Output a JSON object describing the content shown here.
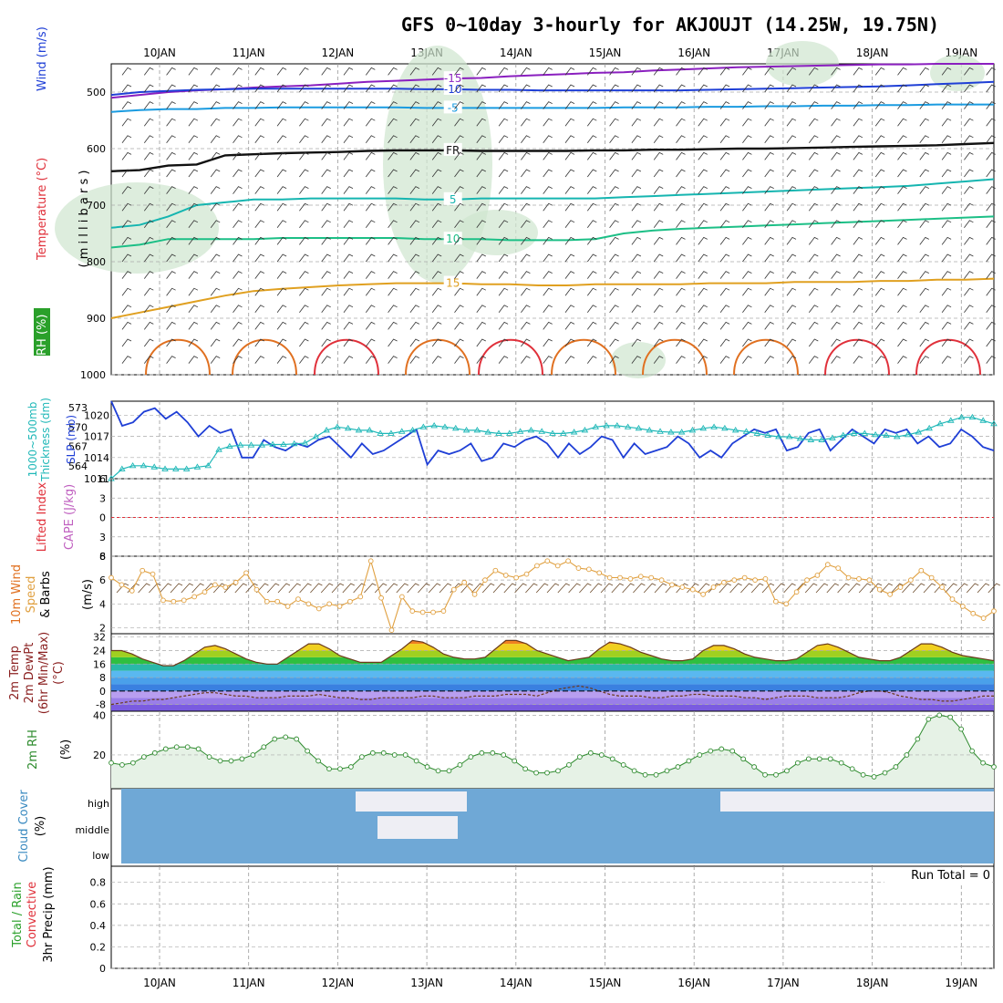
{
  "title": "GFS 0~10day 3-hourly for AKJOUJT (14.25W, 19.75N)",
  "dates": [
    "10JAN",
    "11JAN",
    "12JAN",
    "13JAN",
    "14JAN",
    "15JAN",
    "16JAN",
    "17JAN",
    "18JAN",
    "19JAN"
  ],
  "colors": {
    "temp_m15": "#8a1fbf",
    "temp_m10": "#1f3fd6",
    "temp_m5": "#1a9be0",
    "freezing": "#111111",
    "temp_5": "#15b5b0",
    "temp_10": "#1cbf86",
    "temp_15": "#e0a020",
    "temp_20": "#e07020",
    "temp_25": "#e0303a",
    "slp": "#1f3fd6",
    "thickness": "#20b8b8",
    "wind10m": "#e0a040",
    "rh": "#2e8b2e",
    "cloud": "#6fa8d6"
  },
  "chart_data": [
    {
      "type": "line",
      "panel": "upper-air",
      "ylabel_left": [
        "RH (%)",
        "Temperature (°C)",
        "Wind (m/s)"
      ],
      "ylabel_right": "( m i l l i b a r s )",
      "yticks": [
        500,
        600,
        700,
        800,
        900,
        1000
      ],
      "ylim": [
        450,
        1000
      ],
      "contour_labels": [
        "-15",
        "-10",
        "-5",
        "FR",
        "5",
        "10",
        "15"
      ],
      "series": [
        {
          "name": "-15",
          "values": [
            510,
            505,
            500,
            497,
            495,
            492,
            490,
            488,
            485,
            482,
            480,
            478,
            476,
            475,
            472,
            470,
            468,
            466,
            465,
            462,
            460,
            458,
            456,
            455,
            454,
            453,
            452,
            451,
            451,
            450,
            450,
            450
          ]
        },
        {
          "name": "-10",
          "values": [
            505,
            500,
            498,
            496,
            495,
            494,
            494,
            494,
            494,
            494,
            494,
            495,
            495,
            496,
            496,
            497,
            497,
            497,
            497,
            497,
            497,
            496,
            495,
            494,
            493,
            492,
            491,
            490,
            488,
            486,
            484,
            482
          ]
        },
        {
          "name": "-5",
          "values": [
            535,
            532,
            530,
            530,
            528,
            528,
            527,
            527,
            527,
            527,
            527,
            528,
            528,
            528,
            528,
            528,
            528,
            528,
            527,
            527,
            527,
            526,
            526,
            525,
            525,
            524,
            524,
            523,
            523,
            522,
            522,
            522
          ]
        },
        {
          "name": "FR",
          "values": [
            640,
            638,
            630,
            628,
            612,
            610,
            608,
            607,
            606,
            604,
            603,
            603,
            603,
            604,
            604,
            604,
            604,
            603,
            603,
            602,
            602,
            601,
            600,
            600,
            599,
            598,
            597,
            596,
            595,
            594,
            592,
            590
          ]
        },
        {
          "name": "5",
          "values": [
            740,
            735,
            720,
            700,
            695,
            690,
            690,
            688,
            688,
            688,
            688,
            690,
            690,
            688,
            688,
            688,
            688,
            688,
            686,
            684,
            682,
            680,
            678,
            676,
            674,
            672,
            670,
            668,
            666,
            662,
            658,
            654
          ]
        },
        {
          "name": "10",
          "values": [
            775,
            770,
            760,
            760,
            760,
            760,
            758,
            758,
            758,
            758,
            758,
            760,
            760,
            760,
            762,
            762,
            762,
            760,
            750,
            745,
            742,
            740,
            738,
            736,
            734,
            732,
            730,
            728,
            726,
            724,
            722,
            720
          ]
        },
        {
          "name": "15",
          "values": [
            900,
            890,
            880,
            870,
            860,
            852,
            848,
            845,
            842,
            840,
            838,
            838,
            838,
            840,
            840,
            842,
            842,
            840,
            840,
            840,
            840,
            838,
            838,
            838,
            836,
            836,
            836,
            834,
            834,
            832,
            832,
            830
          ]
        }
      ]
    },
    {
      "type": "line",
      "panel": "slp-thickness",
      "ylabel_left": [
        "1000~500mb",
        "Thickness (dm)"
      ],
      "ylabel_right": "SLP (mb)",
      "yticks_left": [
        564,
        567,
        570,
        573
      ],
      "yticks_right": [
        1011,
        1014,
        1017,
        1020
      ],
      "series": [
        {
          "name": "SLP",
          "values": [
            1022,
            1018.5,
            1019,
            1020.5,
            1021,
            1019.5,
            1020.5,
            1019,
            1017,
            1018.5,
            1017.5,
            1018,
            1014,
            1014,
            1016.5,
            1015.5,
            1015,
            1016,
            1015.5,
            1016.5,
            1017,
            1015.5,
            1014,
            1016,
            1014.5,
            1015,
            1016,
            1017,
            1018,
            1013,
            1015,
            1014.5,
            1015,
            1016,
            1013.5,
            1014,
            1016,
            1015.5,
            1016.5,
            1017,
            1016,
            1014,
            1016,
            1014.5,
            1015.5,
            1017,
            1016.5,
            1014,
            1016,
            1014.5,
            1015,
            1015.5,
            1017,
            1016,
            1014,
            1015,
            1014,
            1016,
            1017,
            1018,
            1017.5,
            1018,
            1015,
            1015.5,
            1017.5,
            1018,
            1015,
            1016.5,
            1018,
            1017,
            1016,
            1018,
            1017.5,
            1018,
            1016,
            1017,
            1015.5,
            1016,
            1018,
            1017,
            1015.5,
            1015
          ]
        },
        {
          "name": "Thickness",
          "values": [
            562,
            563.5,
            564,
            564,
            563.8,
            563.5,
            563.5,
            563.5,
            563.8,
            564,
            566.5,
            567,
            567.2,
            567.2,
            567.2,
            567.3,
            567.3,
            567.4,
            567.5,
            568.5,
            569.5,
            570,
            569.8,
            569.5,
            569.5,
            569,
            569,
            569.3,
            569.5,
            570,
            570.2,
            570,
            569.8,
            569.5,
            569.5,
            569.2,
            569,
            569,
            569.3,
            569.5,
            569.3,
            569,
            569,
            569.2,
            569.5,
            570,
            570.2,
            570.2,
            570,
            569.8,
            569.5,
            569.3,
            569.2,
            569.2,
            569.5,
            569.8,
            570,
            569.8,
            569.5,
            569.3,
            569,
            568.7,
            568.5,
            568.5,
            568.2,
            568,
            568,
            568.3,
            568.7,
            569,
            569,
            568.8,
            568.7,
            568.5,
            568.8,
            569.2,
            569.8,
            570.5,
            571,
            571.5,
            571.5,
            571,
            570.5
          ]
        }
      ]
    },
    {
      "type": "line",
      "panel": "cape-li",
      "ylabel_left": [
        "Lifted Index",
        "CAPE (J/kg)"
      ],
      "yticks": [
        6,
        3,
        0,
        -3,
        -6
      ],
      "ytick_labels": [
        "6",
        "3",
        "0",
        "3",
        "6"
      ],
      "ylim": [
        -6,
        6
      ]
    },
    {
      "type": "line",
      "panel": "wind10m",
      "ylabel_left": [
        "10m Wind",
        "Speed",
        "& Barbs",
        "(m/s)"
      ],
      "yticks": [
        2,
        4,
        6,
        8
      ],
      "ylim": [
        1.5,
        8
      ],
      "series": [
        {
          "name": "10m Wind Speed",
          "values": [
            6.2,
            5.6,
            5.1,
            6.8,
            6.5,
            4.3,
            4.2,
            4.3,
            4.6,
            5.0,
            5.6,
            5.4,
            5.8,
            6.6,
            5.2,
            4.2,
            4.2,
            3.8,
            4.4,
            4.0,
            3.6,
            4.0,
            3.8,
            4.2,
            4.6,
            7.6,
            4.5,
            1.8,
            4.6,
            3.4,
            3.3,
            3.3,
            3.4,
            5.2,
            5.8,
            4.8,
            6.0,
            6.8,
            6.4,
            6.2,
            6.5,
            7.2,
            7.6,
            7.2,
            7.6,
            7.0,
            6.9,
            6.6,
            6.2,
            6.2,
            6.1,
            6.3,
            6.2,
            6.0,
            5.6,
            5.4,
            5.2,
            4.8,
            5.4,
            5.8,
            6.0,
            6.2,
            6.0,
            6.1,
            4.2,
            4.0,
            5.0,
            6.0,
            6.4,
            7.3,
            7.0,
            6.2,
            6.1,
            6.0,
            5.2,
            4.8,
            5.4,
            6.0,
            6.8,
            6.2,
            5.4,
            4.4,
            3.8,
            3.2,
            2.8,
            3.4
          ]
        }
      ]
    },
    {
      "type": "area",
      "panel": "temp-dewpoint",
      "ylabel_left": [
        "2m Temp",
        "2m DewPt",
        "(6hr Min/Max)",
        "(°C)"
      ],
      "yticks": [
        -8,
        0,
        8,
        16,
        24,
        32
      ],
      "ylim": [
        -12,
        34
      ],
      "series": [
        {
          "name": "2m Temp",
          "values": [
            24,
            24,
            22,
            19,
            17,
            15,
            15,
            18,
            22,
            26,
            27,
            25,
            22,
            19,
            17,
            16,
            16,
            20,
            24,
            28,
            28,
            25,
            21,
            19,
            17,
            17,
            17,
            21,
            25,
            30,
            29,
            26,
            22,
            20,
            19,
            19,
            20,
            25,
            30,
            30,
            28,
            24,
            22,
            20,
            18,
            19,
            20,
            25,
            29,
            28,
            26,
            23,
            21,
            19,
            18,
            18,
            19,
            24,
            27,
            27,
            25,
            22,
            20,
            19,
            18,
            18,
            19,
            23,
            27,
            28,
            26,
            23,
            20,
            19,
            18,
            18,
            20,
            24,
            28,
            28,
            26,
            23,
            21,
            20,
            19,
            18
          ]
        },
        {
          "name": "2m DewPt",
          "values": [
            -8,
            -7,
            -6,
            -6,
            -5,
            -5,
            -4,
            -3,
            -2,
            -1,
            -1,
            -2,
            -3,
            -3,
            -4,
            -4,
            -4,
            -3,
            -3,
            -3,
            -2,
            -3,
            -4,
            -4,
            -5,
            -5,
            -4,
            -4,
            -4,
            -4,
            -3,
            -3,
            -4,
            -4,
            -4,
            -3,
            -3,
            -3,
            -2,
            -2,
            -2,
            -3,
            -1,
            1,
            2,
            3,
            2,
            0,
            -2,
            -3,
            -3,
            -3,
            -4,
            -4,
            -3,
            -3,
            -2,
            -2,
            -3,
            -3,
            -3,
            -4,
            -4,
            -5,
            -4,
            -3,
            -3,
            -3,
            -4,
            -4,
            -4,
            -3,
            -1,
            0,
            0,
            -1,
            -3,
            -4,
            -5,
            -5,
            -6,
            -6,
            -5,
            -4,
            -3,
            -3
          ]
        }
      ]
    },
    {
      "type": "area",
      "panel": "rh2m",
      "ylabel_left": [
        "2m RH",
        "(%)"
      ],
      "yticks": [
        20,
        40
      ],
      "ylim": [
        3,
        42
      ],
      "series": [
        {
          "name": "2m RH",
          "values": [
            16,
            15,
            16,
            19,
            21,
            23,
            24,
            24,
            23,
            19,
            17,
            17,
            18,
            20,
            24,
            28,
            29,
            28,
            22,
            17,
            13,
            13,
            14,
            19,
            21,
            21,
            20,
            20,
            17,
            14,
            12,
            12,
            15,
            19,
            21,
            21,
            20,
            17,
            13,
            11,
            11,
            12,
            15,
            19,
            21,
            20,
            18,
            15,
            12,
            10,
            10,
            12,
            14,
            17,
            20,
            22,
            23,
            22,
            18,
            14,
            10,
            10,
            12,
            16,
            18,
            18,
            18,
            16,
            13,
            10,
            9,
            11,
            14,
            20,
            28,
            38,
            40,
            39,
            33,
            22,
            16,
            14
          ]
        }
      ]
    },
    {
      "type": "area",
      "panel": "cloud",
      "ylabel_left": [
        "Cloud Cover",
        "(%)"
      ],
      "ytick_labels": [
        "high",
        "middle",
        "low"
      ]
    },
    {
      "type": "bar",
      "panel": "precip",
      "ylabel_left": [
        "Total / Rain",
        "Convective",
        "3hr Precip (mm)"
      ],
      "yticks": [
        0,
        0.2,
        0.4,
        0.6,
        0.8
      ],
      "ylim": [
        0,
        0.95
      ],
      "annotation": "Run Total = 0",
      "values": []
    }
  ]
}
